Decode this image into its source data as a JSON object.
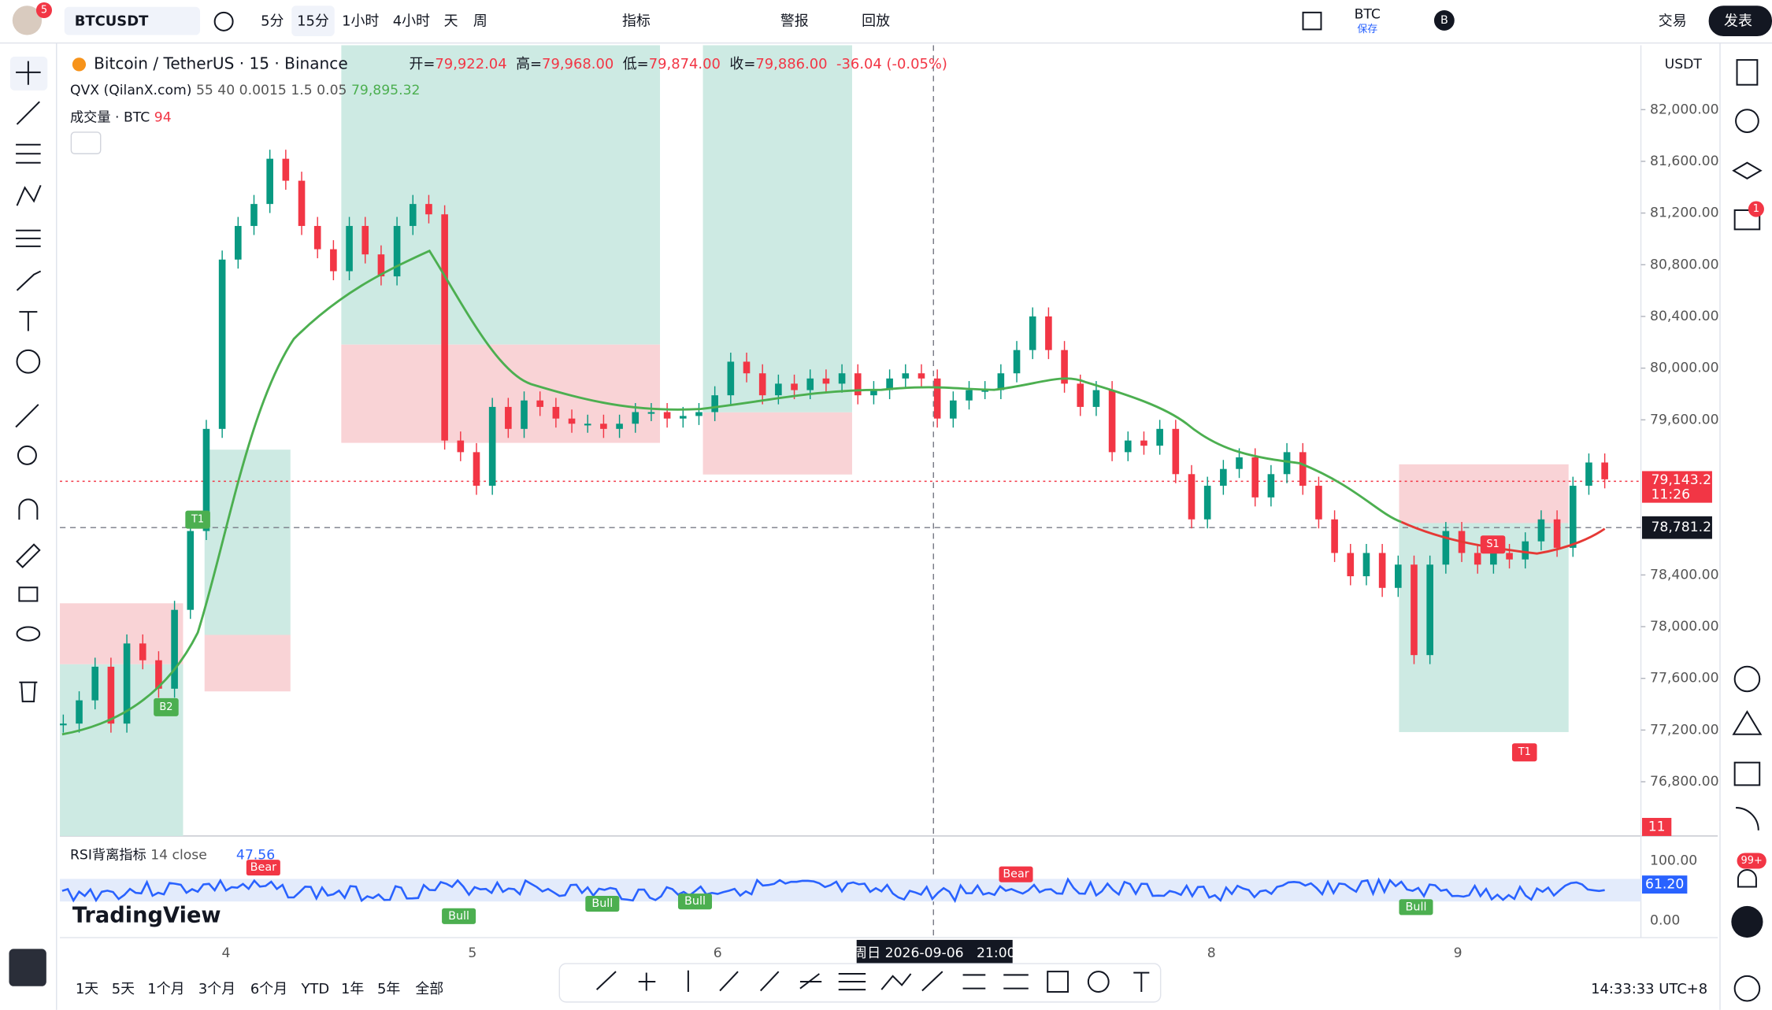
{
  "top_bar": {
    "notification_badge": "5",
    "symbol": "BTCUSDT",
    "intervals": [
      "5分",
      "15分",
      "1小时",
      "4小时",
      "天",
      "周"
    ],
    "indicators": "指标",
    "alert": "警报",
    "replay": "回放",
    "layout_name": "BTC",
    "save_status": "保存",
    "account_letter": "B",
    "trade": "交易",
    "publish": "发表"
  },
  "legend": {
    "title": "Bitcoin / TetherUS · 15 · Binance",
    "ohlc": [
      {
        "label": "开=",
        "value": "79,922.04"
      },
      {
        "label": "高=",
        "value": "79,968.00"
      },
      {
        "label": "低=",
        "value": "79,874.00"
      },
      {
        "label": "收=",
        "value": "79,886.00"
      }
    ],
    "change": "-36.04 (-0.05%)",
    "indicator_name": "QVX (QilanX.com)",
    "indicator_params": "55 40 0.0015 1.5 0.05",
    "indicator_value": "79,895.32",
    "volume_name": "成交量 · BTC",
    "volume_value": "94"
  },
  "currency": "USDT",
  "price_axis": {
    "ticks": [
      {
        "value": 82000,
        "label": "82,000.00"
      },
      {
        "value": 81600,
        "label": "81,600.00"
      },
      {
        "value": 81200,
        "label": "81,200.00"
      },
      {
        "value": 80800,
        "label": "80,800.00"
      },
      {
        "value": 80400,
        "label": "80,400.00"
      },
      {
        "value": 80000,
        "label": "80,000.00"
      },
      {
        "value": 79600,
        "label": "79,600.00"
      },
      {
        "value": 78400,
        "label": "78,400.00"
      },
      {
        "value": 78000,
        "label": "78,000.00"
      },
      {
        "value": 77600,
        "label": "77,600.00"
      },
      {
        "value": 77200,
        "label": "77,200.00"
      },
      {
        "value": 76800,
        "label": "76,800.00"
      }
    ],
    "last_price": "79,143.25",
    "countdown": "11:26",
    "crosshair_price": "78,781.22",
    "volume_badge": "11"
  },
  "price_series": {
    "closes": [
      77250,
      77430,
      77690,
      77250,
      77870,
      77740,
      77520,
      78130,
      78740,
      79530,
      80840,
      81100,
      81270,
      81620,
      81450,
      81100,
      80920,
      80750,
      81100,
      80880,
      80710,
      81100,
      81270,
      81190,
      79440,
      79350,
      79090,
      79700,
      79530,
      79750,
      79700,
      79610,
      79570,
      79570,
      79530,
      79570,
      79660,
      79660,
      79610,
      79630,
      79660,
      79790,
      80050,
      79960,
      79790,
      79880,
      79830,
      79920,
      79880,
      79960,
      79790,
      79830,
      79920,
      79960,
      79920,
      79610,
      79750,
      79830,
      79830,
      79960,
      80140,
      80400,
      80140,
      79880,
      79700,
      79830,
      79350,
      79440,
      79400,
      79530,
      79180,
      78830,
      79090,
      79220,
      79310,
      79000,
      79180,
      79350,
      79090,
      78830,
      78570,
      78390,
      78570,
      78300,
      78480,
      77780,
      78480,
      78740,
      78570,
      78480,
      78570,
      78520,
      78660,
      78830,
      78610,
      79090,
      79270,
      79140
    ]
  },
  "markers": [
    "B2",
    "T1",
    "S1",
    "T1"
  ],
  "rsi": {
    "name": "RSI背离指标",
    "params": "14 close",
    "value": "47.56",
    "axis": [
      "100.00",
      "0.00"
    ],
    "badge": "61.20",
    "signals": [
      "Bear",
      "Bull",
      "Bull",
      "Bull",
      "Bear",
      "Bull"
    ]
  },
  "watermark": "TradingView",
  "time_axis": [
    "4",
    "5",
    "6",
    "8",
    "9"
  ],
  "crosshair_time": "周日 2026-09-06   21:00",
  "ranges": [
    "1天",
    "5天",
    "1个月",
    "3个月",
    "6个月",
    "YTD",
    "1年",
    "5年",
    "全部"
  ],
  "clock": "14:33:33 UTC+8",
  "side_badges": [
    "1",
    "99+"
  ]
}
